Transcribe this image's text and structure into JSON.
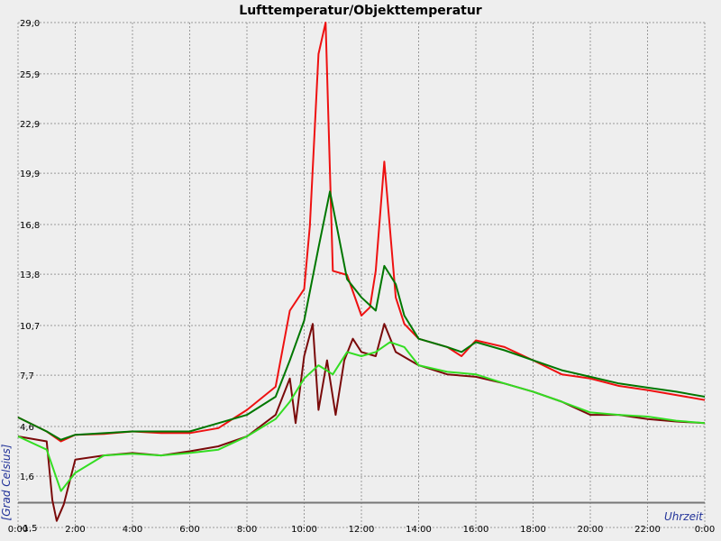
{
  "chart_data": {
    "type": "line",
    "title": "Lufttemperatur/Objekttemperatur",
    "y_label": "[Grad Celsius]",
    "x_label": "Uhrzeit",
    "grid": true,
    "xlim": [
      0,
      24
    ],
    "xticks": [
      {
        "value": 0,
        "label": "0:00"
      },
      {
        "value": 2,
        "label": "2:00"
      },
      {
        "value": 4,
        "label": "4:00"
      },
      {
        "value": 6,
        "label": "6:00"
      },
      {
        "value": 8,
        "label": "8:00"
      },
      {
        "value": 10,
        "label": "10:00"
      },
      {
        "value": 12,
        "label": "12:00"
      },
      {
        "value": 14,
        "label": "14:00"
      },
      {
        "value": 16,
        "label": "16:00"
      },
      {
        "value": 18,
        "label": "18:00"
      },
      {
        "value": 20,
        "label": "20:00"
      },
      {
        "value": 22,
        "label": "22:00"
      },
      {
        "value": 24,
        "label": "0:00"
      }
    ],
    "ylim": [
      -1.5,
      29.0
    ],
    "yticks": [
      {
        "value": -1.5,
        "label": "-1,5"
      },
      {
        "value": 1.6,
        "label": "1,6"
      },
      {
        "value": 4.6,
        "label": "4,6"
      },
      {
        "value": 7.7,
        "label": "7,7"
      },
      {
        "value": 10.7,
        "label": "10,7"
      },
      {
        "value": 13.8,
        "label": "13,8"
      },
      {
        "value": 16.8,
        "label": "16,8"
      },
      {
        "value": 19.9,
        "label": "19,9"
      },
      {
        "value": 22.9,
        "label": "22,9"
      },
      {
        "value": 25.9,
        "label": "25,9"
      },
      {
        "value": 29.0,
        "label": "29,0"
      }
    ],
    "series": [
      {
        "color": "#ee1111",
        "x": [
          0,
          1,
          1.5,
          2,
          3,
          4,
          5,
          6,
          7,
          8,
          9,
          9.5,
          10,
          10.2,
          10.5,
          10.75,
          11,
          11.5,
          12,
          12.3,
          12.5,
          12.8,
          13.2,
          13.5,
          14,
          15,
          15.5,
          16,
          17,
          18,
          19,
          20,
          21,
          22,
          23,
          24
        ],
        "values": [
          5.15,
          4.3,
          3.7,
          4.1,
          4.15,
          4.3,
          4.2,
          4.2,
          4.5,
          5.6,
          7.0,
          11.6,
          12.9,
          16.7,
          27.1,
          29.0,
          14.0,
          13.75,
          11.3,
          11.8,
          14.0,
          20.6,
          12.4,
          10.8,
          9.9,
          9.4,
          8.85,
          9.8,
          9.4,
          8.6,
          7.75,
          7.5,
          7.05,
          6.8,
          6.5,
          6.2
        ]
      },
      {
        "color": "#007700",
        "x": [
          0,
          1,
          1.5,
          2,
          4,
          6,
          7,
          8,
          9,
          9.5,
          10,
          10.5,
          10.9,
          11.5,
          12,
          12.5,
          12.8,
          13.2,
          13.5,
          14,
          15,
          15.5,
          16,
          17,
          18,
          19,
          20,
          21,
          22,
          23,
          24
        ],
        "values": [
          5.15,
          4.3,
          3.8,
          4.1,
          4.3,
          4.3,
          4.8,
          5.3,
          6.4,
          8.6,
          11.0,
          15.4,
          18.8,
          13.5,
          12.4,
          11.6,
          14.3,
          13.2,
          11.3,
          9.9,
          9.4,
          9.1,
          9.7,
          9.2,
          8.6,
          8.0,
          7.6,
          7.2,
          6.95,
          6.7,
          6.4
        ]
      },
      {
        "color": "#7a0a0a",
        "x": [
          0,
          1,
          1.2,
          1.35,
          1.6,
          2,
          3,
          4,
          5,
          6,
          7,
          8,
          9,
          9.5,
          9.7,
          10,
          10.3,
          10.5,
          10.8,
          11.1,
          11.4,
          11.7,
          12,
          12.5,
          12.8,
          13.2,
          14,
          15,
          16,
          17,
          18,
          19,
          20,
          21,
          22,
          23,
          24
        ],
        "values": [
          4.0,
          3.7,
          0.15,
          -1.1,
          -0.1,
          2.6,
          2.85,
          3.0,
          2.85,
          3.1,
          3.4,
          4.0,
          5.3,
          7.5,
          4.8,
          8.85,
          10.8,
          5.6,
          8.6,
          5.3,
          8.6,
          9.9,
          9.1,
          8.85,
          10.8,
          9.1,
          8.3,
          7.75,
          7.6,
          7.2,
          6.7,
          6.1,
          5.3,
          5.3,
          5.05,
          4.9,
          4.8
        ]
      },
      {
        "color": "#33dd22",
        "x": [
          0,
          1,
          1.5,
          2,
          3,
          4,
          5,
          6,
          7,
          8,
          9,
          9.5,
          10,
          10.5,
          11,
          11.5,
          12,
          12.5,
          13,
          13.5,
          14,
          15,
          16,
          17,
          18,
          19,
          20,
          21,
          22,
          23,
          24
        ],
        "values": [
          4.0,
          3.2,
          0.7,
          1.8,
          2.85,
          2.95,
          2.85,
          3.0,
          3.2,
          4.0,
          5.05,
          6.1,
          7.5,
          8.3,
          7.75,
          9.1,
          8.85,
          9.1,
          9.7,
          9.4,
          8.3,
          7.9,
          7.75,
          7.2,
          6.7,
          6.1,
          5.45,
          5.3,
          5.2,
          4.95,
          4.8
        ]
      }
    ]
  }
}
